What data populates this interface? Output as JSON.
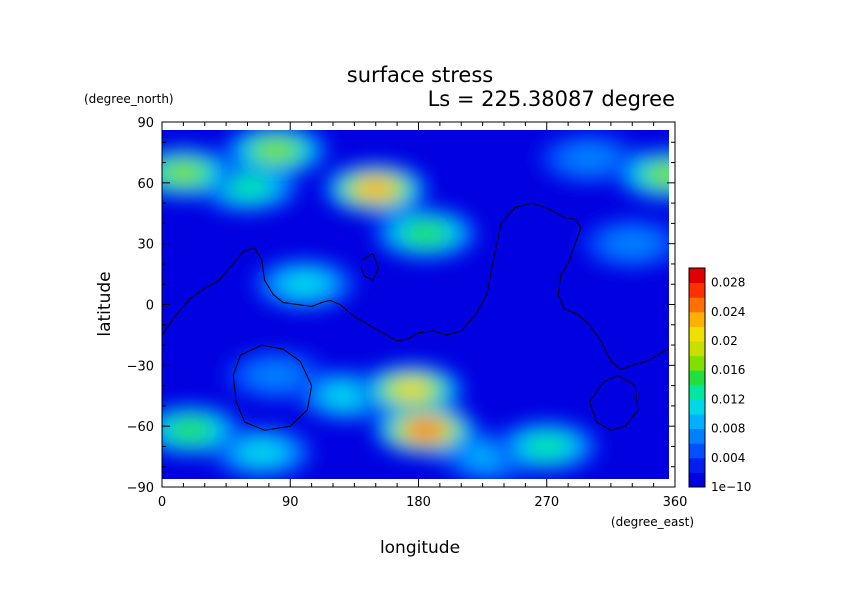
{
  "chart_data": {
    "type": "heatmap",
    "title": "surface stress",
    "subtitle": "Ls = 225.38087 degree",
    "xlabel": "longitude",
    "ylabel": "latitude",
    "x_units": "(degree_east)",
    "y_units": "(degree_north)",
    "xlim": [
      0,
      360
    ],
    "ylim": [
      -90,
      90
    ],
    "x_ticks": [
      0,
      90,
      180,
      270,
      360
    ],
    "y_ticks": [
      90,
      60,
      30,
      0,
      -30,
      -60,
      -90
    ],
    "x_tick_labels": [
      "0",
      "90",
      "180",
      "270",
      "360"
    ],
    "y_tick_labels": [
      "90",
      "60",
      "30",
      "0",
      "−30",
      "−60",
      "−90"
    ],
    "colorbar": {
      "min": 0,
      "max": 0.03,
      "tick_labels": [
        "1e−10",
        "0.004",
        "0.008",
        "0.012",
        "0.016",
        "0.02",
        "0.024",
        "0.028"
      ],
      "tick_values": [
        0,
        0.004,
        0.008,
        0.012,
        0.016,
        0.02,
        0.024,
        0.028
      ],
      "colors": [
        "#0000e0",
        "#0020f0",
        "#0050ff",
        "#0080ff",
        "#00b0ff",
        "#00d8e8",
        "#00e8a0",
        "#20e040",
        "#80e000",
        "#c8e000",
        "#f0e000",
        "#ffb000",
        "#ff7000",
        "#ff3000",
        "#e00000"
      ]
    },
    "background_value": 0.0015,
    "features": [
      {
        "lon": 80,
        "lat": 76,
        "value": 0.018
      },
      {
        "lon": 15,
        "lat": 65,
        "value": 0.017
      },
      {
        "lon": 355,
        "lat": 64,
        "value": 0.018
      },
      {
        "lon": 150,
        "lat": 57,
        "value": 0.024
      },
      {
        "lon": 60,
        "lat": 58,
        "value": 0.014
      },
      {
        "lon": 185,
        "lat": 35,
        "value": 0.016
      },
      {
        "lon": 300,
        "lat": 72,
        "value": 0.009
      },
      {
        "lon": 100,
        "lat": 10,
        "value": 0.012
      },
      {
        "lon": 175,
        "lat": -42,
        "value": 0.022
      },
      {
        "lon": 185,
        "lat": -62,
        "value": 0.025
      },
      {
        "lon": 130,
        "lat": -45,
        "value": 0.011
      },
      {
        "lon": 20,
        "lat": -62,
        "value": 0.016
      },
      {
        "lon": 70,
        "lat": -73,
        "value": 0.012
      },
      {
        "lon": 270,
        "lat": -70,
        "value": 0.014
      },
      {
        "lon": 230,
        "lat": -75,
        "value": 0.01
      },
      {
        "lon": 80,
        "lat": -35,
        "value": 0.007
      },
      {
        "lon": 330,
        "lat": 30,
        "value": 0.007
      }
    ],
    "contours": [
      {
        "name": "continent-outline",
        "points": [
          [
            0,
            -15
          ],
          [
            10,
            -5
          ],
          [
            20,
            3
          ],
          [
            30,
            8
          ],
          [
            40,
            12
          ],
          [
            50,
            20
          ],
          [
            57,
            26
          ],
          [
            65,
            28
          ],
          [
            70,
            22
          ],
          [
            72,
            12
          ],
          [
            78,
            5
          ],
          [
            85,
            1
          ],
          [
            95,
            0
          ],
          [
            105,
            -1
          ],
          [
            112,
            1
          ],
          [
            118,
            2
          ],
          [
            125,
            0
          ],
          [
            135,
            -6
          ],
          [
            145,
            -10
          ],
          [
            155,
            -14
          ],
          [
            165,
            -18
          ],
          [
            172,
            -17
          ],
          [
            180,
            -14
          ],
          [
            190,
            -13
          ],
          [
            200,
            -15
          ],
          [
            210,
            -13
          ],
          [
            220,
            -5
          ],
          [
            228,
            5
          ],
          [
            232,
            20
          ],
          [
            238,
            40
          ],
          [
            248,
            48
          ],
          [
            260,
            50
          ],
          [
            272,
            47
          ],
          [
            282,
            43
          ],
          [
            290,
            42
          ],
          [
            294,
            38
          ],
          [
            290,
            30
          ],
          [
            285,
            20
          ],
          [
            280,
            15
          ],
          [
            278,
            5
          ],
          [
            282,
            -2
          ],
          [
            292,
            -5
          ],
          [
            300,
            -10
          ],
          [
            308,
            -18
          ],
          [
            315,
            -28
          ],
          [
            322,
            -32
          ],
          [
            330,
            -30
          ],
          [
            340,
            -28
          ],
          [
            350,
            -24
          ],
          [
            360,
            -20
          ]
        ]
      },
      {
        "name": "basin-left",
        "closed": true,
        "points": [
          [
            55,
            -25
          ],
          [
            70,
            -20
          ],
          [
            85,
            -22
          ],
          [
            97,
            -28
          ],
          [
            105,
            -40
          ],
          [
            102,
            -52
          ],
          [
            90,
            -60
          ],
          [
            72,
            -62
          ],
          [
            58,
            -58
          ],
          [
            52,
            -48
          ],
          [
            50,
            -35
          ]
        ]
      },
      {
        "name": "basin-right",
        "closed": true,
        "points": [
          [
            320,
            -35
          ],
          [
            332,
            -40
          ],
          [
            334,
            -52
          ],
          [
            325,
            -60
          ],
          [
            315,
            -62
          ],
          [
            305,
            -58
          ],
          [
            300,
            -48
          ],
          [
            310,
            -38
          ]
        ]
      },
      {
        "name": "small-loop",
        "closed": true,
        "points": [
          [
            140,
            22
          ],
          [
            148,
            25
          ],
          [
            152,
            18
          ],
          [
            148,
            12
          ],
          [
            142,
            14
          ],
          [
            140,
            18
          ]
        ]
      }
    ]
  }
}
